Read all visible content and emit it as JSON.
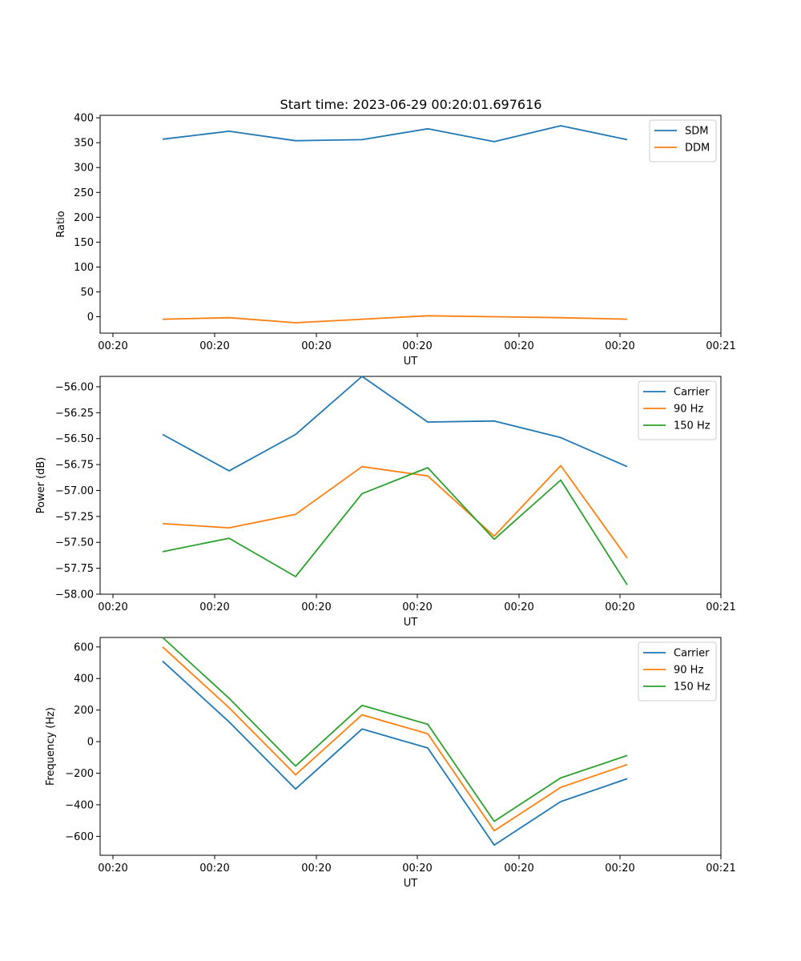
{
  "figure": {
    "title": "Start time: 2023-06-29 00:20:01.697616"
  },
  "chart_data": [
    {
      "type": "line",
      "xlabel": "UT",
      "ylabel": "Ratio",
      "x_tick_labels": [
        "00:20",
        "00:20",
        "00:20",
        "00:20",
        "00:20",
        "00:20",
        "00:21"
      ],
      "yticks": [
        0,
        50,
        100,
        150,
        200,
        250,
        300,
        350,
        400
      ],
      "ylim": [
        -33,
        405
      ],
      "legend": "top-right",
      "series": [
        {
          "name": "SDM",
          "color": "#1f77b4",
          "values": [
            357,
            373,
            354,
            356,
            378,
            352,
            384,
            356
          ]
        },
        {
          "name": "DDM",
          "color": "#ff7f0e",
          "values": [
            -5,
            -2,
            -12,
            -5,
            2,
            0,
            -2,
            -5
          ]
        }
      ]
    },
    {
      "type": "line",
      "xlabel": "UT",
      "ylabel": "Power (dB)",
      "x_tick_labels": [
        "00:20",
        "00:20",
        "00:20",
        "00:20",
        "00:20",
        "00:20",
        "00:21"
      ],
      "yticks": [
        "−56.00",
        "−56.25",
        "−56.50",
        "−56.75",
        "−57.00",
        "−57.25",
        "−57.50",
        "−57.75",
        "−58.00"
      ],
      "ytick_values": [
        -56.0,
        -56.25,
        -56.5,
        -56.75,
        -57.0,
        -57.25,
        -57.5,
        -57.75,
        -58.0
      ],
      "ylim": [
        -58.0,
        -55.9
      ],
      "legend": "top-right",
      "series": [
        {
          "name": "Carrier",
          "color": "#1f77b4",
          "values": [
            -56.46,
            -56.81,
            -56.46,
            -55.9,
            -56.34,
            -56.33,
            -56.49,
            -56.77
          ]
        },
        {
          "name": "90 Hz",
          "color": "#ff7f0e",
          "values": [
            -57.32,
            -57.36,
            -57.23,
            -56.77,
            -56.86,
            -57.44,
            -56.76,
            -57.65
          ]
        },
        {
          "name": "150 Hz",
          "color": "#2ca02c",
          "values": [
            -57.59,
            -57.46,
            -57.83,
            -57.03,
            -56.78,
            -57.47,
            -56.9,
            -57.91
          ]
        }
      ]
    },
    {
      "type": "line",
      "xlabel": "UT",
      "ylabel": "Frequency (Hz)",
      "x_tick_labels": [
        "00:20",
        "00:20",
        "00:20",
        "00:20",
        "00:20",
        "00:20",
        "00:21"
      ],
      "yticks": [
        "600",
        "400",
        "200",
        "0",
        "−200",
        "−400",
        "−600"
      ],
      "ytick_values": [
        600,
        400,
        200,
        0,
        -200,
        -400,
        -600
      ],
      "ylim": [
        -720,
        660
      ],
      "legend": "top-right",
      "series": [
        {
          "name": "Carrier",
          "color": "#1f77b4",
          "values": [
            510,
            125,
            -300,
            80,
            -40,
            -655,
            -380,
            -235
          ]
        },
        {
          "name": "90 Hz",
          "color": "#ff7f0e",
          "values": [
            600,
            215,
            -210,
            170,
            50,
            -565,
            -290,
            -145
          ]
        },
        {
          "name": "150 Hz",
          "color": "#2ca02c",
          "values": [
            660,
            275,
            -155,
            230,
            110,
            -505,
            -230,
            -88
          ]
        }
      ]
    }
  ]
}
